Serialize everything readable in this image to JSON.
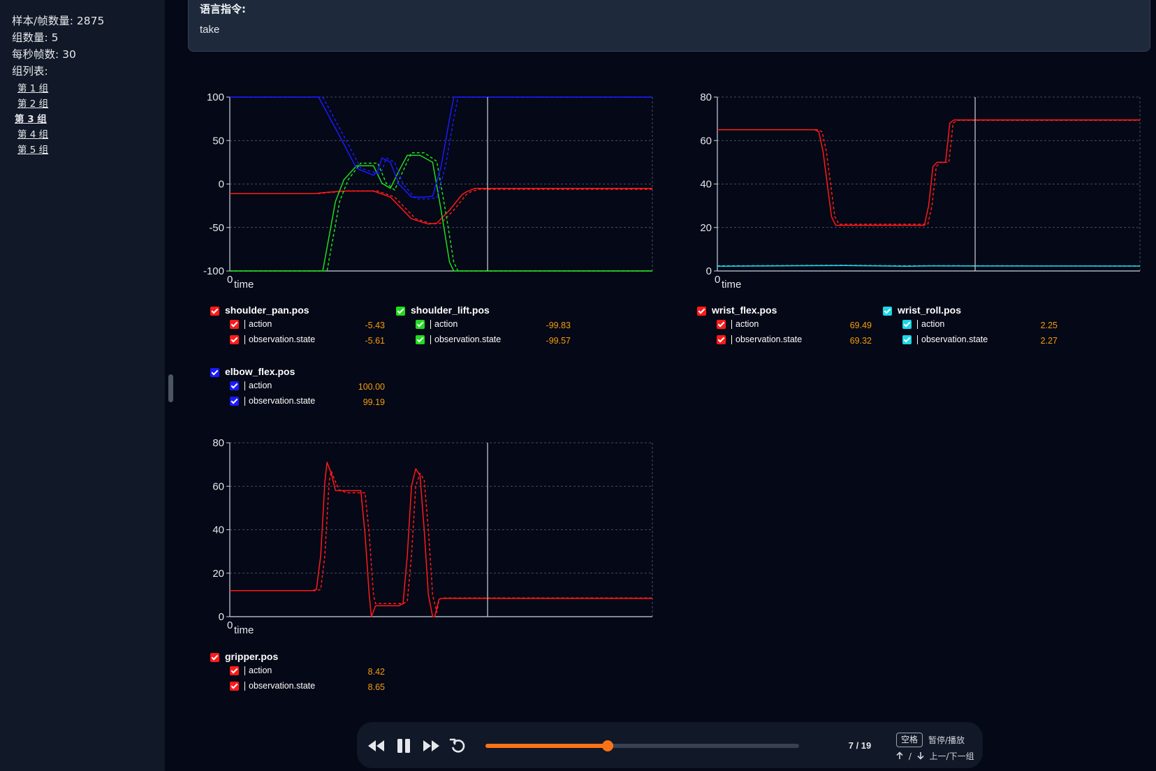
{
  "sidebar": {
    "stats": [
      "样本/帧数量: 2875",
      "组数量: 5",
      "每秒帧数: 30",
      "组列表:"
    ],
    "groups": [
      {
        "label": "第 1 组",
        "active": false
      },
      {
        "label": "第 2 组",
        "active": false
      },
      {
        "label": "第 3 组",
        "active": true
      },
      {
        "label": "第 4 组",
        "active": false
      },
      {
        "label": "第 5 组",
        "active": false
      }
    ]
  },
  "instruction": {
    "label": "语言指令:",
    "text": "take"
  },
  "player": {
    "counter": "7 / 19",
    "progress": 0.39,
    "key_label": "空格",
    "hint_play": "暂停/播放",
    "hint_nav": "上一/下一组",
    "hint_sep": "/",
    "icons": [
      "rewind-icon",
      "pause-icon",
      "fast-forward-icon",
      "replay-icon",
      "arrow-up-icon",
      "arrow-down-icon"
    ]
  },
  "colors": {
    "red": "#ff1a1a",
    "green": "#1fdc1f",
    "blue": "#1a1aff",
    "cyan": "#1ad8e8",
    "value": "#f59e0b",
    "accent": "#f97316",
    "cursor": "#d1d5db"
  },
  "legends": {
    "shoulder_pan": {
      "title": "shoulder_pan.pos",
      "color": "#ff1a1a",
      "rows": [
        {
          "name": "action",
          "value": "-5.43"
        },
        {
          "name": "observation.state",
          "value": "-5.61"
        }
      ]
    },
    "shoulder_lift": {
      "title": "shoulder_lift.pos",
      "color": "#1fdc1f",
      "rows": [
        {
          "name": "action",
          "value": "-99.83"
        },
        {
          "name": "observation.state",
          "value": "-99.57"
        }
      ]
    },
    "elbow_flex": {
      "title": "elbow_flex.pos",
      "color": "#1a1aff",
      "rows": [
        {
          "name": "action",
          "value": "100.00"
        },
        {
          "name": "observation.state",
          "value": "99.19"
        }
      ]
    },
    "wrist_flex": {
      "title": "wrist_flex.pos",
      "color": "#ff1a1a",
      "rows": [
        {
          "name": "action",
          "value": "69.49"
        },
        {
          "name": "observation.state",
          "value": "69.32"
        }
      ]
    },
    "wrist_roll": {
      "title": "wrist_roll.pos",
      "color": "#1ad8e8",
      "rows": [
        {
          "name": "action",
          "value": "2.25"
        },
        {
          "name": "observation.state",
          "value": "2.27"
        }
      ]
    },
    "gripper": {
      "title": "gripper.pos",
      "color": "#ff1a1a",
      "rows": [
        {
          "name": "action",
          "value": "8.42"
        },
        {
          "name": "observation.state",
          "value": "8.65"
        }
      ]
    }
  },
  "chart_data": [
    {
      "type": "line",
      "xlabel": "time",
      "x_ticks": [
        "0"
      ],
      "ylim": [
        -100,
        100
      ],
      "y_ticks": [
        100,
        50,
        0,
        -50,
        -100
      ],
      "xlim": [
        0,
        100
      ],
      "cursor_x": 61,
      "grid": true,
      "series": [
        {
          "name": "shoulder_pan.pos | action",
          "color": "#ff1a1a",
          "dash": false,
          "x": [
            0,
            20,
            22,
            27,
            34,
            38,
            43,
            47,
            49,
            52,
            55,
            56,
            58,
            100
          ],
          "y": [
            -11,
            -11,
            -10,
            -8,
            -8,
            -15,
            -40,
            -46,
            -45,
            -30,
            -12,
            -9,
            -5,
            -5
          ]
        },
        {
          "name": "shoulder_pan.pos | observation.state",
          "color": "#ff1a1a",
          "dash": true,
          "x": [
            0,
            21,
            23,
            28,
            35,
            39,
            44,
            48,
            50,
            53,
            56,
            57,
            59,
            100
          ],
          "y": [
            -11,
            -11,
            -10,
            -8,
            -8,
            -15,
            -40,
            -46,
            -45,
            -30,
            -12,
            -9,
            -6,
            -6
          ]
        },
        {
          "name": "shoulder_lift.pos | action",
          "color": "#1fdc1f",
          "dash": false,
          "x": [
            0,
            22,
            25,
            27,
            30,
            34,
            36,
            38,
            40,
            42,
            45,
            48,
            50,
            52,
            53,
            100
          ],
          "y": [
            -100,
            -100,
            -20,
            5,
            21,
            21,
            1,
            -5,
            15,
            33,
            33,
            25,
            -30,
            -90,
            -100,
            -100
          ]
        },
        {
          "name": "shoulder_lift.pos | observation.state",
          "color": "#1fdc1f",
          "dash": true,
          "x": [
            0,
            23,
            26,
            28,
            31,
            35,
            37,
            39,
            41,
            43,
            46,
            49,
            51,
            53,
            54,
            100
          ],
          "y": [
            -100,
            -100,
            -20,
            5,
            24,
            24,
            1,
            -7,
            15,
            36,
            36,
            26,
            -30,
            -90,
            -100,
            -100
          ]
        },
        {
          "name": "elbow_flex.pos | action",
          "color": "#1a1aff",
          "dash": false,
          "x": [
            0,
            21,
            26,
            30,
            34,
            35,
            36,
            38,
            40,
            43,
            46,
            48,
            50,
            52,
            53,
            54,
            100
          ],
          "y": [
            100,
            100,
            55,
            18,
            10,
            15,
            30,
            25,
            0,
            -15,
            -15,
            -14,
            20,
            75,
            100,
            100,
            100
          ]
        },
        {
          "name": "elbow_flex.pos | observation.state",
          "color": "#1a1aff",
          "dash": true,
          "x": [
            0,
            22,
            27,
            31,
            35,
            36,
            37,
            39,
            41,
            44,
            47,
            49,
            51,
            53,
            54,
            55,
            100
          ],
          "y": [
            100,
            100,
            55,
            18,
            12,
            15,
            30,
            25,
            0,
            -17,
            -17,
            -16,
            20,
            75,
            100,
            100,
            100
          ]
        }
      ]
    },
    {
      "type": "line",
      "xlabel": "time",
      "x_ticks": [
        "0"
      ],
      "ylim": [
        0,
        80
      ],
      "y_ticks": [
        80,
        60,
        40,
        20,
        0
      ],
      "xlim": [
        0,
        100
      ],
      "cursor_x": 61,
      "grid": true,
      "series": [
        {
          "name": "wrist_flex.pos | action",
          "color": "#ff1a1a",
          "dash": false,
          "x": [
            0,
            23,
            24,
            25,
            27,
            28,
            48,
            49,
            50,
            51,
            52,
            54,
            55,
            56,
            100
          ],
          "y": [
            65,
            65,
            64,
            55,
            25,
            21,
            21,
            21,
            30,
            48,
            50,
            50,
            68,
            69.5,
            69.5
          ]
        },
        {
          "name": "wrist_flex.pos | observation.state",
          "color": "#ff1a1a",
          "dash": true,
          "x": [
            0,
            23.8,
            24.8,
            25.8,
            27.8,
            28.8,
            48.8,
            49.8,
            50.8,
            51.8,
            52.8,
            54.8,
            55.8,
            56.8,
            100
          ],
          "y": [
            65,
            65,
            64,
            55,
            25,
            21.5,
            21.5,
            21.5,
            30,
            48,
            50,
            50,
            68,
            69.3,
            69.3
          ]
        },
        {
          "name": "wrist_roll.pos | action",
          "color": "#1ad8e8",
          "dash": false,
          "x": [
            0,
            30,
            45,
            50,
            100
          ],
          "y": [
            2.2,
            2.5,
            2.2,
            2.3,
            2.25
          ]
        },
        {
          "name": "wrist_roll.pos | observation.state",
          "color": "#1ad8e8",
          "dash": true,
          "x": [
            0,
            30,
            45,
            50,
            100
          ],
          "y": [
            2.3,
            2.6,
            2.3,
            2.4,
            2.27
          ]
        }
      ]
    },
    {
      "type": "line",
      "xlabel": "time",
      "x_ticks": [
        "0"
      ],
      "ylim": [
        0,
        80
      ],
      "y_ticks": [
        80,
        60,
        40,
        20,
        0
      ],
      "xlim": [
        0,
        100
      ],
      "cursor_x": 61,
      "grid": true,
      "series": [
        {
          "name": "gripper.pos | action",
          "color": "#ff1a1a",
          "dash": false,
          "x": [
            0,
            19.5,
            20.5,
            21.5,
            22.5,
            23,
            24,
            25,
            27,
            31,
            32,
            33,
            33.5,
            34.5,
            35,
            40,
            41,
            42,
            43,
            44,
            45,
            46,
            47,
            48,
            48.5,
            49.5,
            50,
            100
          ],
          "y": [
            12,
            12,
            12.5,
            28,
            62,
            71,
            66,
            58,
            58,
            58,
            38,
            10,
            0,
            5,
            5,
            5,
            6,
            28,
            60,
            68,
            65,
            40,
            10,
            0,
            0,
            8,
            8.4,
            8.4
          ]
        },
        {
          "name": "gripper.pos | observation.state",
          "color": "#ff1a1a",
          "dash": true,
          "x": [
            0,
            20.5,
            21.5,
            22.5,
            23.5,
            24,
            25,
            26,
            28,
            32,
            33,
            34,
            34.5,
            35.5,
            36,
            41,
            42,
            43,
            44,
            45,
            46,
            47,
            48,
            49,
            49.5,
            50.5,
            51,
            100
          ],
          "y": [
            12,
            12,
            12.5,
            28,
            62,
            67,
            62,
            58,
            57,
            57,
            38,
            10,
            6,
            6,
            6,
            6,
            7,
            28,
            60,
            66,
            63,
            40,
            10,
            2,
            8,
            8.6,
            8.6,
            8.6
          ]
        }
      ]
    }
  ]
}
